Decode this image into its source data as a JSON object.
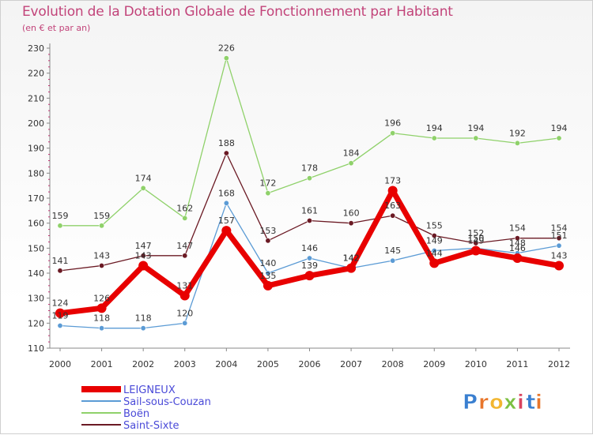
{
  "chart_data": {
    "type": "line",
    "title": "Evolution de la Dotation Globale de Fonctionnement par Habitant",
    "subtitle": "(en € et par an)",
    "xlabel": "",
    "ylabel": "",
    "ylim": [
      110,
      230
    ],
    "ytick_step": 10,
    "categories": [
      "2000",
      "2001",
      "2002",
      "2003",
      "2004",
      "2005",
      "2006",
      "2007",
      "2008",
      "2009",
      "2010",
      "2011",
      "2012"
    ],
    "series": [
      {
        "name": "LEIGNEUX",
        "color": "#e80000",
        "emphasis": true,
        "values": [
          124,
          126,
          143,
          131,
          157,
          135,
          139,
          142,
          173,
          144,
          149,
          146,
          143
        ]
      },
      {
        "name": "Sail-sous-Couzan",
        "color": "#5b9bd5",
        "values": [
          119,
          118,
          118,
          120,
          168,
          140,
          146,
          142,
          145,
          149,
          150,
          148,
          151
        ]
      },
      {
        "name": "Boën",
        "color": "#8fd16a",
        "values": [
          159,
          159,
          174,
          162,
          226,
          172,
          178,
          184,
          196,
          194,
          194,
          192,
          194
        ]
      },
      {
        "name": "Saint-Sixte",
        "color": "#6b1a24",
        "values": [
          141,
          143,
          147,
          147,
          188,
          153,
          161,
          160,
          163,
          155,
          152,
          154,
          154
        ]
      }
    ],
    "legend_position": "bottom-left",
    "grid": false
  },
  "branding": {
    "text": "Proxiti"
  }
}
